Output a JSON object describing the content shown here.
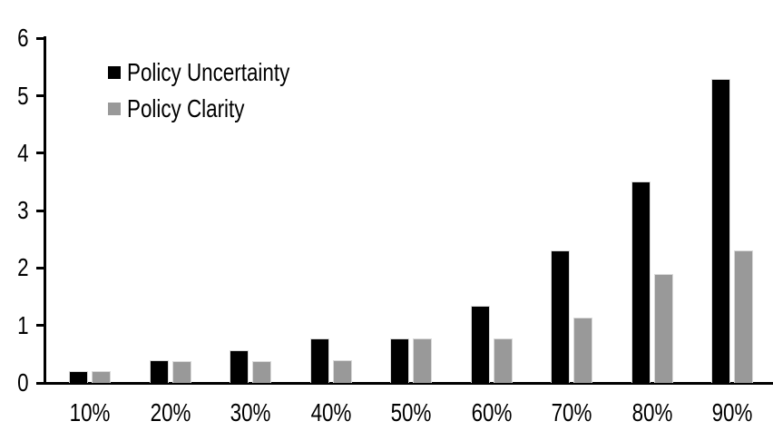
{
  "chart_data": {
    "type": "bar",
    "title": "",
    "xlabel": "",
    "ylabel": "",
    "categories": [
      "10%",
      "20%",
      "30%",
      "40%",
      "50%",
      "60%",
      "70%",
      "80%",
      "90%"
    ],
    "series": [
      {
        "name": "Policy Uncertainty",
        "color": "#000000",
        "values": [
          0.2,
          0.4,
          0.57,
          0.77,
          0.77,
          1.34,
          2.31,
          3.5,
          5.3
        ]
      },
      {
        "name": "Policy Clarity",
        "color": "#999999",
        "values": [
          0.2,
          0.38,
          0.38,
          0.39,
          0.77,
          0.77,
          1.14,
          1.9,
          2.3
        ]
      }
    ],
    "ylim": [
      0,
      6
    ],
    "yticks": [
      0,
      1,
      2,
      3,
      4,
      5,
      6
    ],
    "grid": false,
    "legend_position": "top-left"
  },
  "colors": {
    "background": "#ffffff",
    "axis": "#000000",
    "bar_border": "#d9d9d9"
  }
}
